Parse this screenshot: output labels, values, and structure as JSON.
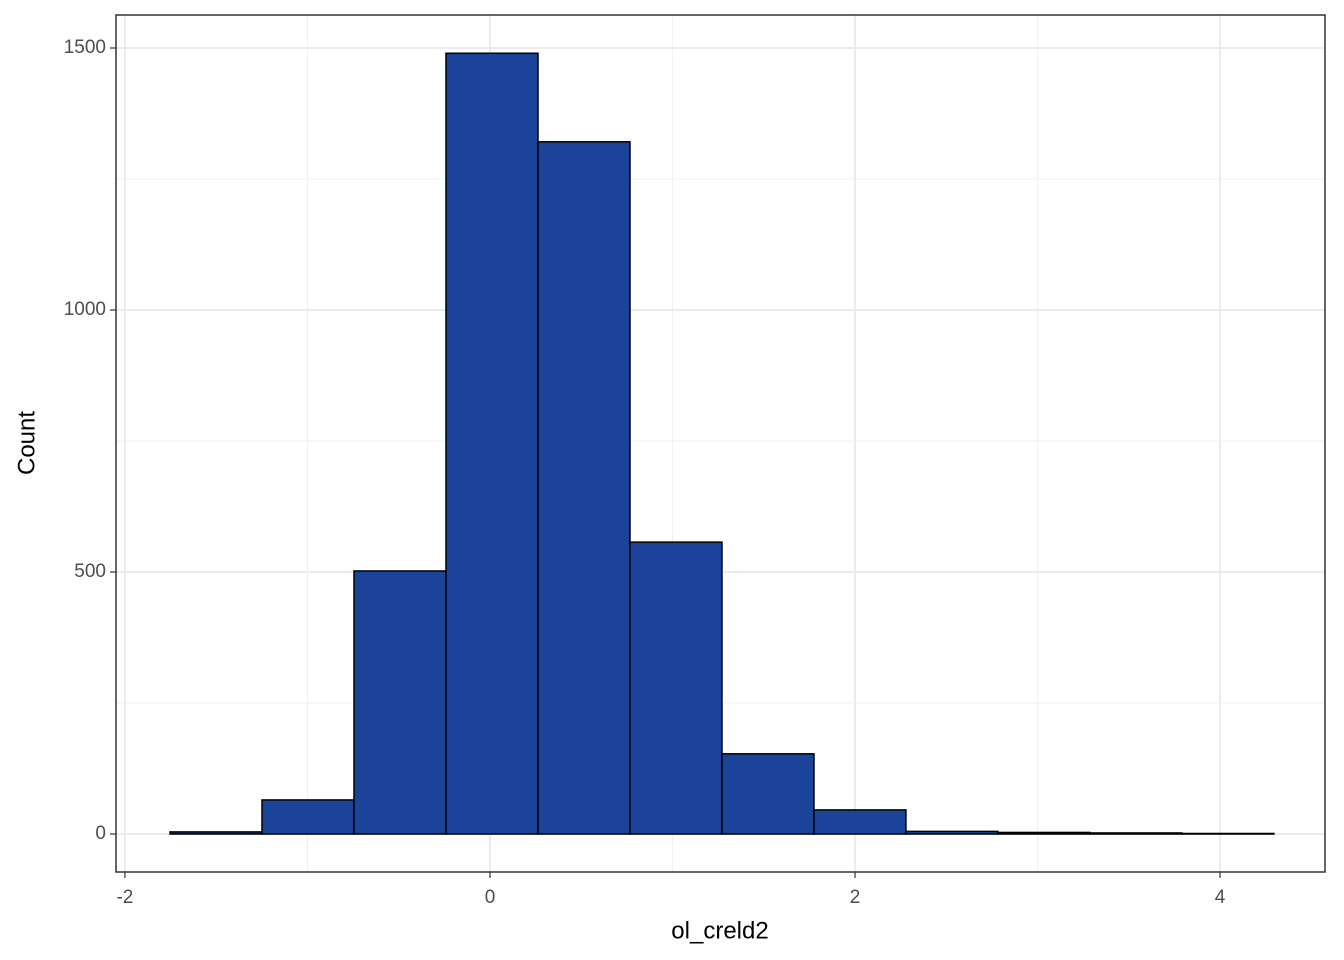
{
  "chart_data": {
    "type": "histogram",
    "x_label": "ol_creld2",
    "y_label": "Count",
    "bins": [
      -1.753,
      -1.249,
      -0.745,
      -0.241,
      0.263,
      0.767,
      1.271,
      1.775,
      2.279,
      2.783,
      3.287,
      3.791,
      4.295
    ],
    "values": [
      4,
      65,
      502,
      1490,
      1321,
      557,
      153,
      46,
      5,
      3,
      2,
      1
    ],
    "color": "#1a4399",
    "edge_color": "#000000",
    "xlim": [
      -2.049,
      4.575
    ],
    "xticks": [
      -2,
      0,
      2,
      4
    ],
    "ylim": [
      -72.5,
      1563
    ],
    "yticks": [
      0,
      500,
      1000,
      1500
    ],
    "grid": true,
    "minor_grid": true
  }
}
